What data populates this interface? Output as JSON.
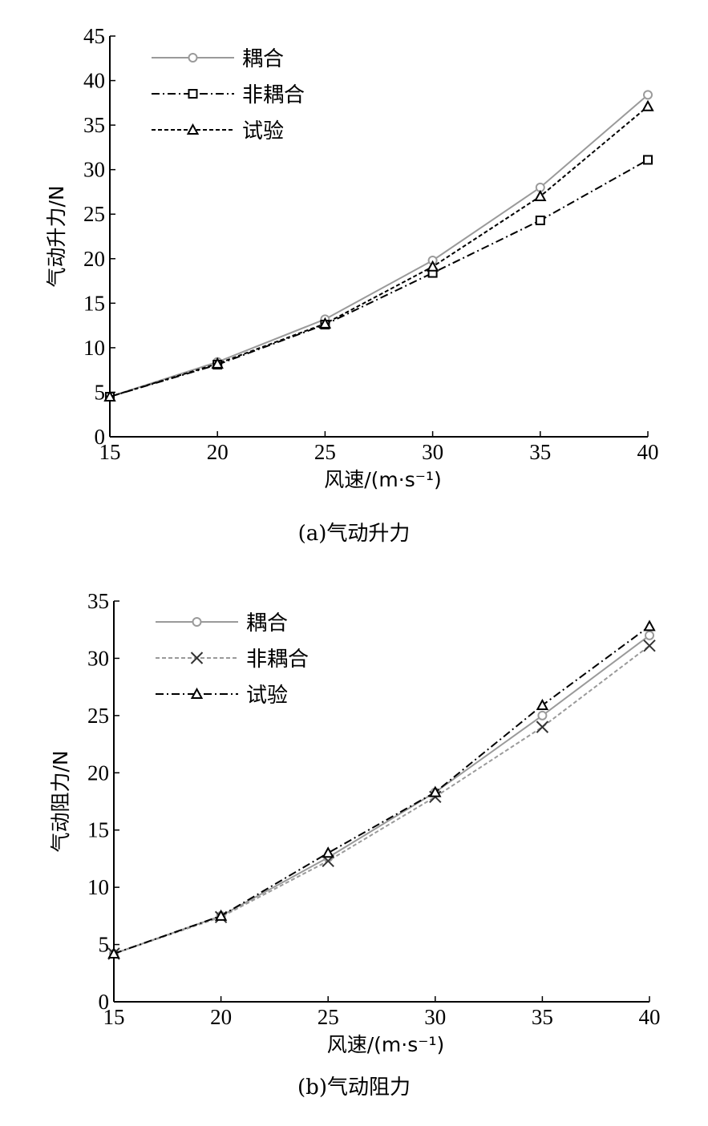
{
  "chart_data": [
    {
      "type": "line",
      "caption": "(a)气动升力",
      "xlabel": "风速/(m·s⁻¹)",
      "ylabel": "气动升力/N",
      "xlim": [
        15,
        40
      ],
      "ylim": [
        0,
        45
      ],
      "xticks": [
        15,
        20,
        25,
        30,
        35,
        40
      ],
      "yticks": [
        0,
        5,
        10,
        15,
        20,
        25,
        30,
        35,
        40,
        45
      ],
      "x": [
        15,
        20,
        25,
        30,
        35,
        40
      ],
      "legend_position": "top-left",
      "grid": false,
      "series": [
        {
          "name": "耦合",
          "values": [
            4.5,
            8.4,
            13.2,
            19.8,
            28.0,
            38.4
          ],
          "marker": "circle",
          "dash": "solid",
          "color": "#9a9a9a"
        },
        {
          "name": "非耦合",
          "values": [
            4.5,
            8.1,
            12.6,
            18.4,
            24.3,
            31.1
          ],
          "marker": "square",
          "dash": "dashdot",
          "color": "#000000"
        },
        {
          "name": "试验",
          "values": [
            4.5,
            8.2,
            12.7,
            19.1,
            27.0,
            37.1
          ],
          "marker": "triangle",
          "dash": "dotted",
          "color": "#000000"
        }
      ]
    },
    {
      "type": "line",
      "caption": "(b)气动阻力",
      "xlabel": "风速/(m·s⁻¹)",
      "ylabel": "气动阻力/N",
      "xlim": [
        15,
        40
      ],
      "ylim": [
        0,
        35
      ],
      "xticks": [
        15,
        20,
        25,
        30,
        35,
        40
      ],
      "yticks": [
        0,
        5,
        10,
        15,
        20,
        25,
        30,
        35
      ],
      "x": [
        15,
        20,
        25,
        30,
        35,
        40
      ],
      "legend_position": "top-left",
      "grid": false,
      "series": [
        {
          "name": "耦合",
          "values": [
            4.2,
            7.5,
            12.6,
            18.3,
            25.0,
            32.0
          ],
          "marker": "circle",
          "dash": "solid",
          "color": "#9a9a9a"
        },
        {
          "name": "非耦合",
          "values": [
            4.2,
            7.4,
            12.3,
            17.9,
            24.0,
            31.1
          ],
          "marker": "cross",
          "dash": "dotted",
          "color": "#9a9a9a"
        },
        {
          "name": "试验",
          "values": [
            4.2,
            7.5,
            13.0,
            18.3,
            25.9,
            32.8
          ],
          "marker": "triangle",
          "dash": "dashdot",
          "color": "#000000"
        }
      ]
    }
  ]
}
